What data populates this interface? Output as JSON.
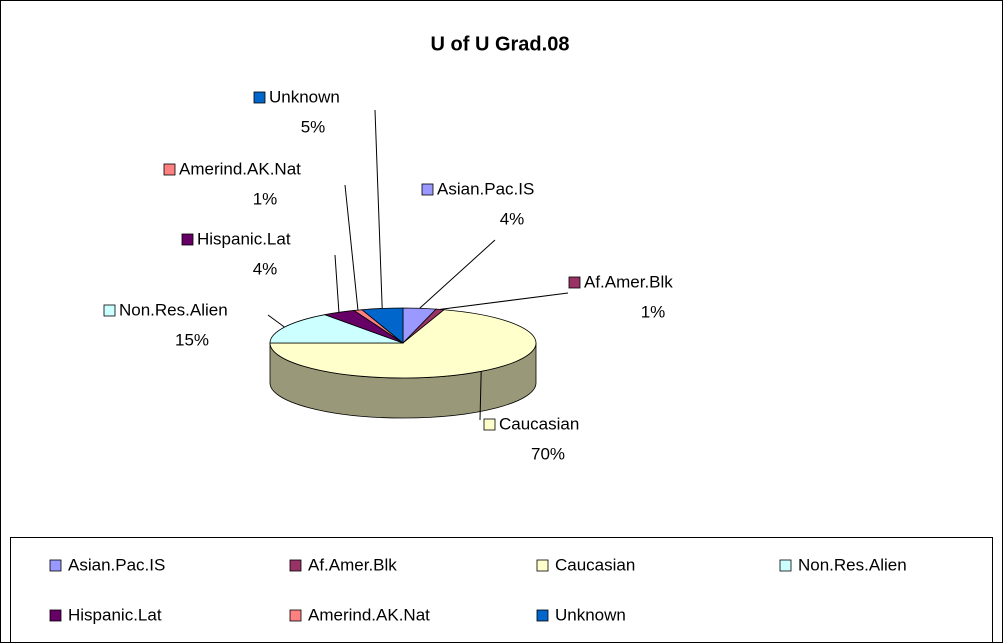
{
  "chart_data": {
    "type": "pie",
    "title": "U of U Grad.08",
    "categories": [
      "Asian.Pac.IS",
      "Af.Amer.Blk",
      "Caucasian",
      "Non.Res.Alien",
      "Hispanic.Lat",
      "Amerind.AK.Nat",
      "Unknown"
    ],
    "values": [
      4,
      1,
      70,
      15,
      4,
      1,
      5
    ],
    "value_labels": [
      "4%",
      "1%",
      "70%",
      "15%",
      "4%",
      "1%",
      "5%"
    ],
    "colors": [
      "#9999ff",
      "#993366",
      "#ffffcc",
      "#ccffff",
      "#660066",
      "#ff8080",
      "#0066cc"
    ],
    "legend": "bottom"
  }
}
